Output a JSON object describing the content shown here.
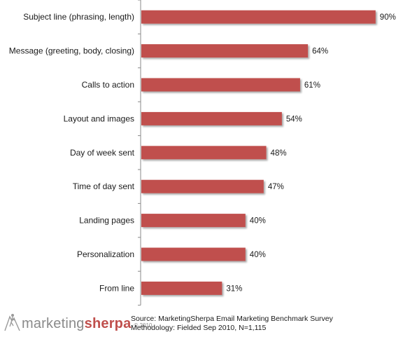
{
  "chart_data": {
    "type": "bar",
    "orientation": "horizontal",
    "categories": [
      "Subject line (phrasing, length)",
      "Message (greeting, body, closing)",
      "Calls to action",
      "Layout and images",
      "Day of week sent",
      "Time of day sent",
      "Landing pages",
      "Personalization",
      "From line"
    ],
    "values": [
      90,
      64,
      61,
      54,
      48,
      47,
      40,
      40,
      31
    ],
    "value_labels": [
      "90%",
      "64%",
      "61%",
      "54%",
      "48%",
      "47%",
      "40%",
      "40%",
      "31%"
    ],
    "xlim": [
      0,
      100
    ],
    "grid": false,
    "legend": "none",
    "bar_color": "#c0504d"
  },
  "logo": {
    "part1": "marketing",
    "part2": "sherpa",
    "suffix": "© 2010"
  },
  "source": {
    "line1": "Source: MarketingSherpa Email Marketing Benchmark Survey",
    "line2": "Methodology: Fielded Sep 2010, N=1,115"
  }
}
